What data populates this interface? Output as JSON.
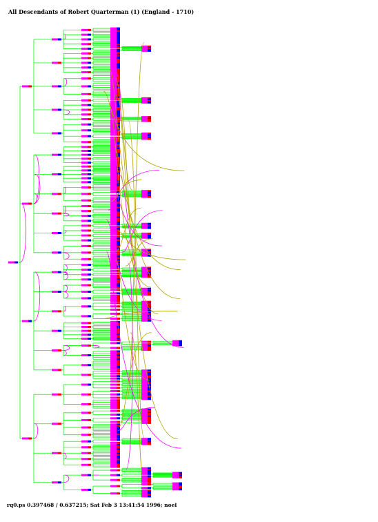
{
  "title": "All Descendants of Robert Quarterman (1) (England - 1710)",
  "footer": "rq0.ps  0.397468 / 0.637215; Sat Feb  3 13:41:54 1996; noel",
  "colors": {
    "background": "#ffffff",
    "tree_line": "#00ff00",
    "link_line": "#ff00ff",
    "cross_link": "#b0a000",
    "male_marker": "#0000ff",
    "female_marker": "#ff0000",
    "couple_block": "#ff00ff"
  }
}
